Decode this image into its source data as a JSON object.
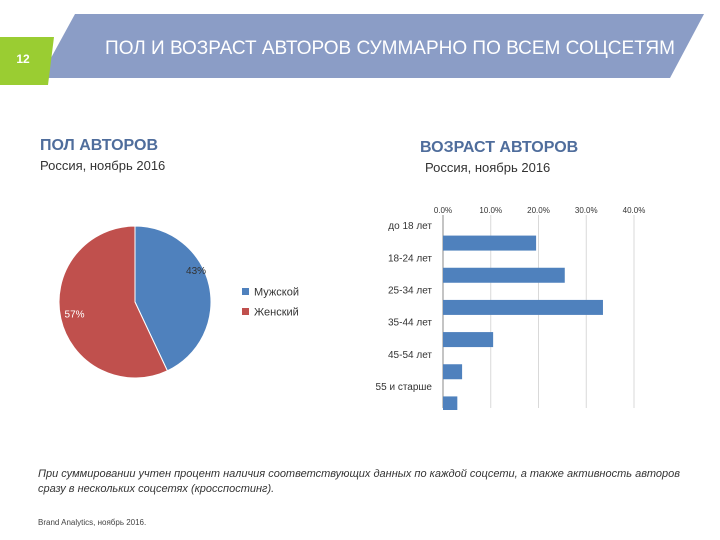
{
  "slide": {
    "number": "12",
    "title": "ПОЛ И ВОЗРАСТ АВТОРОВ СУММАРНО ПО ВСЕМ СОЦСЕТЯМ",
    "footnote": "При суммировании учтен процент наличия соответствующих данных по каждой соцсети, а также активность авторов сразу в нескольких соцсетях (кросспостинг).",
    "source": "Brand Analytics, ноябрь 2016."
  },
  "colors": {
    "banner": "#8b9dc6",
    "accent": "#9acd32",
    "male": "#4f81bd",
    "female": "#c0504d",
    "bar": "#4f81bd"
  },
  "chart_data": [
    {
      "type": "pie",
      "title": "ПОЛ АВТОРОВ",
      "subtitle": "Россия, ноябрь 2016",
      "slices": [
        {
          "label": "Мужской",
          "value": 43,
          "display": "43%"
        },
        {
          "label": "Женский",
          "value": 57,
          "display": "57%"
        }
      ],
      "legend": "right"
    },
    {
      "type": "bar",
      "orientation": "horizontal",
      "title": "ВОЗРАСТ АВТОРОВ",
      "subtitle": "Россия, ноябрь 2016",
      "categories": [
        "до 18 лет",
        "18-24 лет",
        "25-34 лет",
        "35-44 лет",
        "45-54 лет",
        "55 и старше"
      ],
      "values": [
        19.5,
        25.5,
        33.5,
        10.5,
        4.0,
        3.0
      ],
      "xlim": [
        0,
        40
      ],
      "ticks": [
        "0.0%",
        "10.0%",
        "20.0%",
        "30.0%",
        "40.0%"
      ],
      "grid": true
    }
  ]
}
